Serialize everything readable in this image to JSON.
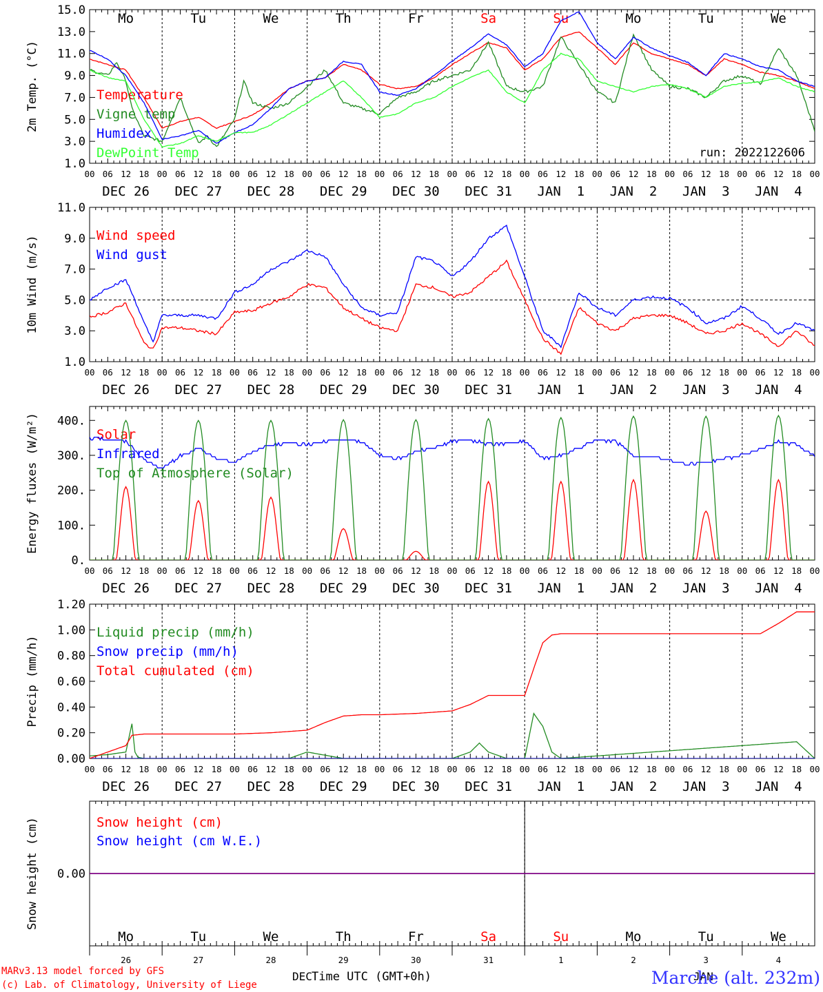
{
  "run_label": "run: 2022122606",
  "footer": {
    "model_line": "MARv3.13 model forced by GFS",
    "credit_line": "(c) Lab. of Climatology, University of Liege",
    "xlabel": "Time UTC (GMT+0h)",
    "month_labels": [
      "DEC",
      "JAN"
    ],
    "station": "Marche (alt. 232m)"
  },
  "days": {
    "weekdays": [
      "Mo",
      "Tu",
      "We",
      "Th",
      "Fr",
      "Sa",
      "Su",
      "Mo",
      "Tu",
      "We"
    ],
    "weekday_colors": [
      "#000000",
      "#000000",
      "#000000",
      "#000000",
      "#000000",
      "#ff0000",
      "#ff0000",
      "#000000",
      "#000000",
      "#000000"
    ],
    "date_labels": [
      "DEC 26",
      "DEC 27",
      "DEC 28",
      "DEC 29",
      "DEC 30",
      "DEC 31",
      "JAN  1",
      "JAN  2",
      "JAN  3",
      "JAN  4"
    ],
    "day_numbers": [
      "26",
      "27",
      "28",
      "29",
      "30",
      "31",
      "1",
      "2",
      "3",
      "4"
    ],
    "hour_ticks": [
      "00",
      "06",
      "12",
      "18"
    ],
    "end_tick": "00"
  },
  "chart_data": [
    {
      "type": "line",
      "ylabel": "2m Temp. (°C)",
      "ylim": [
        1.0,
        15.0
      ],
      "yticks": [
        "1.0",
        "3.0",
        "5.0",
        "7.0",
        "9.0",
        "11.0",
        "13.0",
        "15.0"
      ],
      "x_unit": "hours since Dec 26 00 UTC",
      "series": [
        {
          "name": "Temperature",
          "color": "#ff0000",
          "x": [
            0,
            6,
            12,
            18,
            24,
            30,
            36,
            42,
            48,
            54,
            60,
            66,
            72,
            78,
            84,
            90,
            96,
            102,
            108,
            114,
            120,
            126,
            132,
            138,
            144,
            150,
            156,
            162,
            168,
            174,
            180,
            186,
            192,
            198,
            204,
            210,
            216,
            222,
            228,
            234,
            240
          ],
          "y": [
            10.5,
            10,
            9.5,
            7,
            4.2,
            4.8,
            5.2,
            4.2,
            4.8,
            5.4,
            6.5,
            7.8,
            8.5,
            8.8,
            10.0,
            9.5,
            8.2,
            7.8,
            8.0,
            8.8,
            10.0,
            11.0,
            12.0,
            11.5,
            9.5,
            10.5,
            12.5,
            13.0,
            11.5,
            10,
            12.0,
            11.0,
            10.5,
            10.0,
            9.0,
            10.5,
            10.0,
            9.3,
            9.0,
            8.5,
            7.8
          ]
        },
        {
          "name": "Vigne temp",
          "color": "#228b22",
          "x": [
            0,
            6,
            9,
            12,
            14,
            18,
            24,
            30,
            36,
            39,
            42,
            48,
            51,
            54,
            60,
            66,
            72,
            78,
            84,
            90,
            96,
            102,
            108,
            114,
            120,
            126,
            132,
            138,
            144,
            150,
            156,
            162,
            168,
            174,
            180,
            186,
            192,
            198,
            204,
            210,
            216,
            222,
            228,
            234,
            240
          ],
          "y": [
            9.5,
            9.0,
            10.2,
            8.5,
            6.0,
            3.5,
            3.0,
            7.0,
            2.8,
            3.5,
            2.5,
            5.0,
            8.5,
            6.5,
            6.0,
            6.5,
            8.0,
            9.5,
            6.5,
            6.0,
            5.5,
            7.0,
            7.5,
            8.5,
            9.0,
            9.5,
            12.0,
            8.0,
            7.5,
            8.0,
            12.5,
            10.0,
            7.5,
            6.5,
            12.8,
            9.5,
            8.0,
            7.8,
            7.0,
            8.5,
            9.0,
            8.2,
            11.5,
            9.0,
            4.0
          ]
        },
        {
          "name": "Humidex",
          "color": "#0000ff",
          "x": [
            0,
            6,
            12,
            18,
            24,
            30,
            36,
            42,
            48,
            54,
            60,
            66,
            72,
            78,
            84,
            90,
            96,
            102,
            108,
            114,
            120,
            126,
            132,
            138,
            144,
            150,
            156,
            162,
            168,
            174,
            180,
            186,
            192,
            198,
            204,
            210,
            216,
            222,
            228,
            234,
            240
          ],
          "y": [
            11.3,
            10.5,
            9.0,
            6.5,
            3.2,
            3.5,
            4.0,
            2.8,
            3.8,
            4.5,
            6.0,
            7.8,
            8.5,
            8.8,
            10.3,
            10.0,
            7.5,
            7.2,
            7.8,
            9.0,
            10.3,
            11.5,
            12.8,
            11.8,
            9.8,
            11.0,
            14.0,
            14.8,
            12.0,
            10.5,
            12.5,
            11.5,
            10.8,
            10.2,
            9.0,
            11.0,
            10.5,
            9.8,
            9.5,
            8.5,
            8.0
          ]
        },
        {
          "name": "DewPoint Temp",
          "color": "#33ff33",
          "x": [
            0,
            6,
            12,
            18,
            24,
            30,
            36,
            42,
            48,
            54,
            60,
            66,
            72,
            78,
            84,
            90,
            96,
            102,
            108,
            114,
            120,
            126,
            132,
            138,
            144,
            150,
            156,
            162,
            168,
            174,
            180,
            186,
            192,
            198,
            204,
            210,
            216,
            222,
            228,
            234,
            240
          ],
          "y": [
            9.5,
            8.8,
            8.5,
            5.0,
            2.5,
            2.8,
            3.5,
            3.0,
            3.8,
            3.8,
            4.5,
            5.5,
            6.5,
            7.5,
            8.5,
            7.0,
            5.2,
            5.5,
            6.5,
            7.0,
            8.0,
            8.8,
            9.5,
            7.5,
            6.5,
            9.5,
            11.0,
            10.5,
            8.5,
            8.0,
            7.5,
            8.0,
            8.2,
            7.8,
            7.0,
            8.0,
            8.3,
            8.4,
            8.8,
            8.0,
            7.5
          ]
        }
      ]
    },
    {
      "type": "line",
      "ylabel": "10m Wind (m/s)",
      "ylim": [
        1.0,
        11.0
      ],
      "yticks": [
        "1.0",
        "3.0",
        "5.0",
        "7.0",
        "9.0",
        "11.0"
      ],
      "reference_line": 5.0,
      "series": [
        {
          "name": "Wind speed",
          "color": "#ff0000",
          "x": [
            0,
            6,
            12,
            15,
            18,
            21,
            24,
            30,
            36,
            42,
            48,
            54,
            60,
            66,
            72,
            78,
            84,
            90,
            96,
            102,
            108,
            114,
            120,
            126,
            132,
            138,
            144,
            150,
            156,
            162,
            168,
            174,
            180,
            186,
            192,
            198,
            204,
            210,
            216,
            222,
            228,
            234,
            240
          ],
          "y": [
            3.9,
            4.2,
            4.8,
            3.5,
            2.2,
            1.8,
            3.2,
            3.2,
            3.0,
            2.8,
            4.2,
            4.3,
            4.8,
            5.2,
            6.0,
            5.8,
            4.5,
            3.8,
            3.2,
            3.0,
            6.0,
            5.8,
            5.2,
            5.5,
            6.5,
            7.5,
            5.0,
            2.5,
            1.5,
            4.5,
            3.5,
            3.0,
            3.8,
            4.0,
            4.0,
            3.5,
            2.8,
            3.0,
            3.5,
            2.8,
            2.0,
            3.0,
            2.0
          ]
        },
        {
          "name": "Wind gust",
          "color": "#0000ff",
          "x": [
            0,
            6,
            12,
            15,
            18,
            21,
            24,
            30,
            36,
            42,
            48,
            54,
            60,
            66,
            72,
            78,
            84,
            90,
            96,
            102,
            108,
            114,
            120,
            126,
            132,
            138,
            144,
            150,
            156,
            162,
            168,
            174,
            180,
            186,
            192,
            198,
            204,
            210,
            216,
            222,
            228,
            234,
            240
          ],
          "y": [
            5.0,
            5.8,
            6.3,
            5.0,
            3.5,
            2.3,
            4.0,
            4.0,
            4.0,
            3.8,
            5.5,
            6.0,
            7.0,
            7.5,
            8.2,
            7.8,
            6.0,
            4.5,
            4.0,
            4.2,
            7.8,
            7.5,
            6.5,
            7.5,
            9.0,
            9.8,
            6.5,
            3.0,
            2.0,
            5.5,
            4.5,
            4.0,
            5.0,
            5.2,
            5.1,
            4.5,
            3.5,
            3.8,
            4.6,
            3.8,
            2.8,
            3.5,
            3.0
          ]
        }
      ]
    },
    {
      "type": "line",
      "ylabel": "Energy fluxes (W/m²)",
      "ylim": [
        0,
        440
      ],
      "yticks": [
        "0.",
        "100.",
        "200.",
        "300.",
        "400."
      ],
      "series": [
        {
          "name": "Solar",
          "color": "#ff0000",
          "peaks": [
            210,
            170,
            180,
            90,
            25,
            225,
            225,
            230,
            140,
            230
          ]
        },
        {
          "name": "Infrared",
          "color": "#0000ff",
          "x": [
            0,
            6,
            12,
            18,
            24,
            30,
            36,
            42,
            48,
            54,
            60,
            66,
            72,
            78,
            84,
            90,
            96,
            102,
            108,
            114,
            120,
            126,
            132,
            138,
            144,
            150,
            156,
            162,
            168,
            174,
            180,
            186,
            192,
            198,
            204,
            210,
            216,
            222,
            228,
            234,
            240
          ],
          "y": [
            348,
            345,
            340,
            290,
            260,
            300,
            320,
            290,
            280,
            310,
            330,
            335,
            330,
            340,
            345,
            340,
            300,
            290,
            310,
            320,
            340,
            345,
            330,
            335,
            340,
            290,
            300,
            320,
            345,
            340,
            300,
            295,
            285,
            275,
            280,
            290,
            300,
            320,
            340,
            330,
            300
          ]
        },
        {
          "name": "Top of Atmosphere (Solar)",
          "color": "#228b22",
          "peaks": [
            400,
            400,
            400,
            402,
            402,
            405,
            408,
            412,
            412,
            414
          ]
        }
      ]
    },
    {
      "type": "line",
      "ylabel": "Precip (mm/h)",
      "ylim": [
        0.0,
        1.2
      ],
      "yticks": [
        "0.00",
        "0.20",
        "0.40",
        "0.60",
        "0.80",
        "1.00",
        "1.20"
      ],
      "series": [
        {
          "name": "Liquid precip (mm/h)",
          "color": "#228b22",
          "x": [
            0,
            6,
            12,
            14,
            15,
            16,
            18,
            24,
            48,
            66,
            72,
            84,
            96,
            120,
            126,
            129,
            132,
            138,
            144,
            147,
            150,
            153,
            156,
            234,
            240
          ],
          "y": [
            0.02,
            0.03,
            0.05,
            0.27,
            0.05,
            0.01,
            0.0,
            0.0,
            0.0,
            0.0,
            0.05,
            0.0,
            0.0,
            0.0,
            0.05,
            0.12,
            0.05,
            0.0,
            0.0,
            0.35,
            0.25,
            0.05,
            0.0,
            0.13,
            0.0
          ]
        },
        {
          "name": "Snow precip (mm/h)",
          "color": "#0000ff",
          "x": [
            0,
            240
          ],
          "y": [
            0,
            0
          ]
        },
        {
          "name": "Total cumulated (cm)",
          "color": "#ff0000",
          "x": [
            0,
            6,
            12,
            14,
            18,
            24,
            48,
            60,
            72,
            78,
            84,
            90,
            96,
            108,
            120,
            126,
            132,
            138,
            144,
            147,
            150,
            153,
            156,
            168,
            192,
            222,
            228,
            234,
            240
          ],
          "y": [
            0.0,
            0.05,
            0.1,
            0.18,
            0.19,
            0.19,
            0.19,
            0.2,
            0.22,
            0.28,
            0.33,
            0.34,
            0.34,
            0.35,
            0.37,
            0.42,
            0.49,
            0.49,
            0.49,
            0.7,
            0.9,
            0.96,
            0.97,
            0.97,
            0.97,
            0.97,
            1.05,
            1.14,
            1.14
          ]
        }
      ]
    },
    {
      "type": "line",
      "ylabel": "Snow height (cm)",
      "ylim": [
        -1.0,
        1.0
      ],
      "yticks": [
        "0.00"
      ],
      "series": [
        {
          "name": "Snow height (cm)",
          "color": "#ff0000",
          "x": [
            0,
            240
          ],
          "y": [
            0,
            0
          ]
        },
        {
          "name": "Snow height (cm W.E.)",
          "color": "#0000ff",
          "x": [
            0,
            240
          ],
          "y": [
            0,
            0
          ]
        }
      ]
    }
  ]
}
